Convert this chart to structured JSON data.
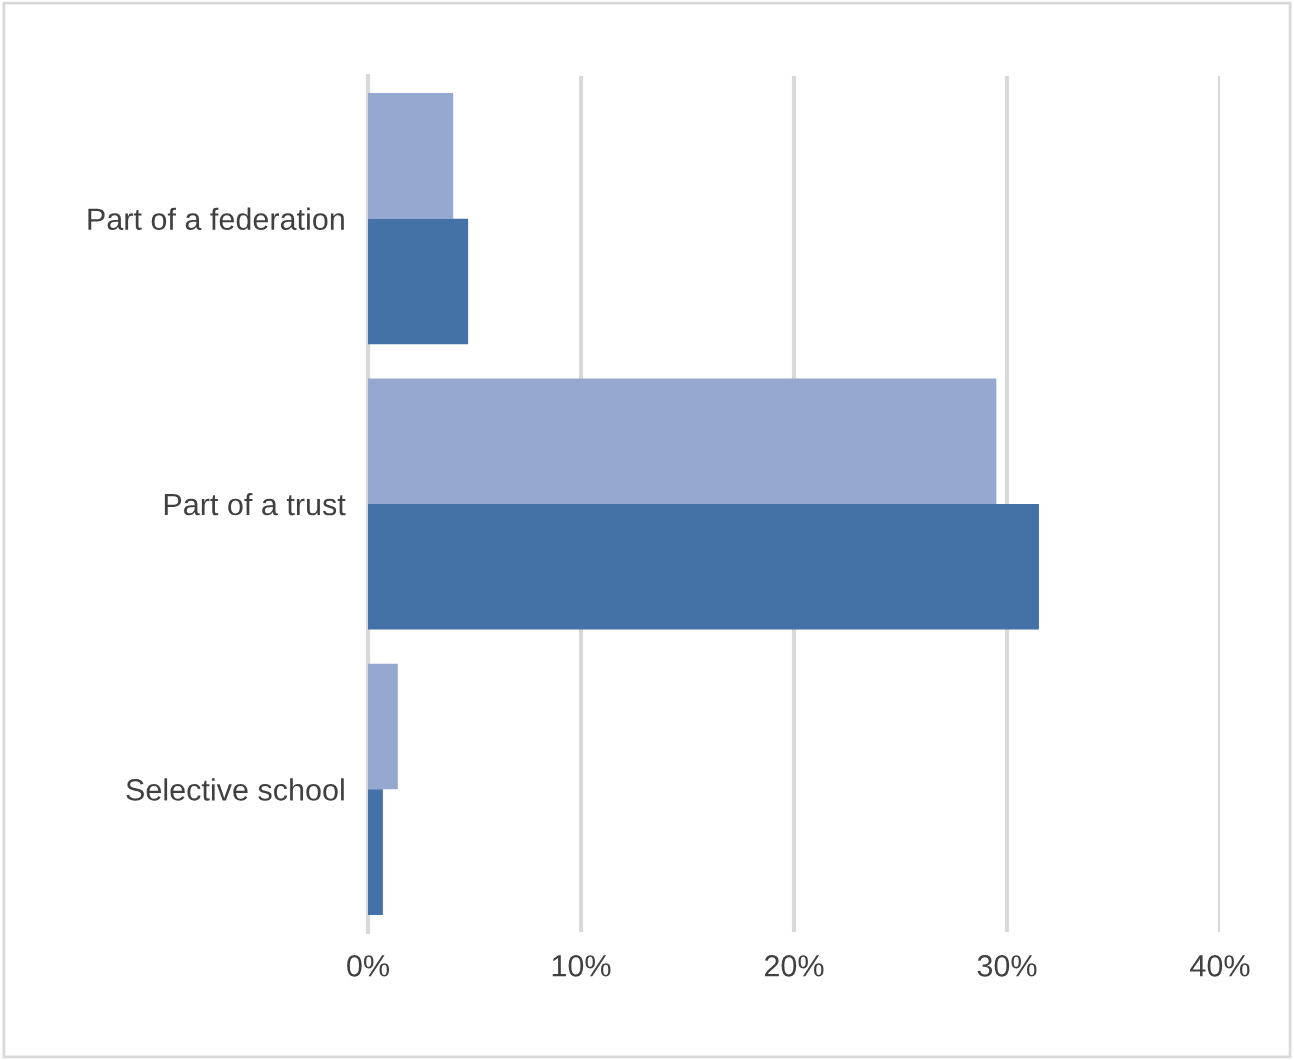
{
  "chart_data": {
    "type": "bar",
    "orientation": "horizontal",
    "categories": [
      "Part of a federation",
      "Part of a trust",
      "Selective school"
    ],
    "series": [
      {
        "color": "#95a9d0",
        "values": [
          4.0,
          29.5,
          1.4
        ]
      },
      {
        "color": "#4472a8",
        "values": [
          4.7,
          31.5,
          0.7
        ]
      }
    ],
    "xlim": [
      0,
      40
    ],
    "xticks": [
      {
        "value": 0,
        "label": "0%"
      },
      {
        "value": 10,
        "label": "10%"
      },
      {
        "value": 20,
        "label": "20%"
      },
      {
        "value": 30,
        "label": "30%"
      },
      {
        "value": 40,
        "label": "40%"
      }
    ],
    "grid": "x",
    "legend": false
  }
}
